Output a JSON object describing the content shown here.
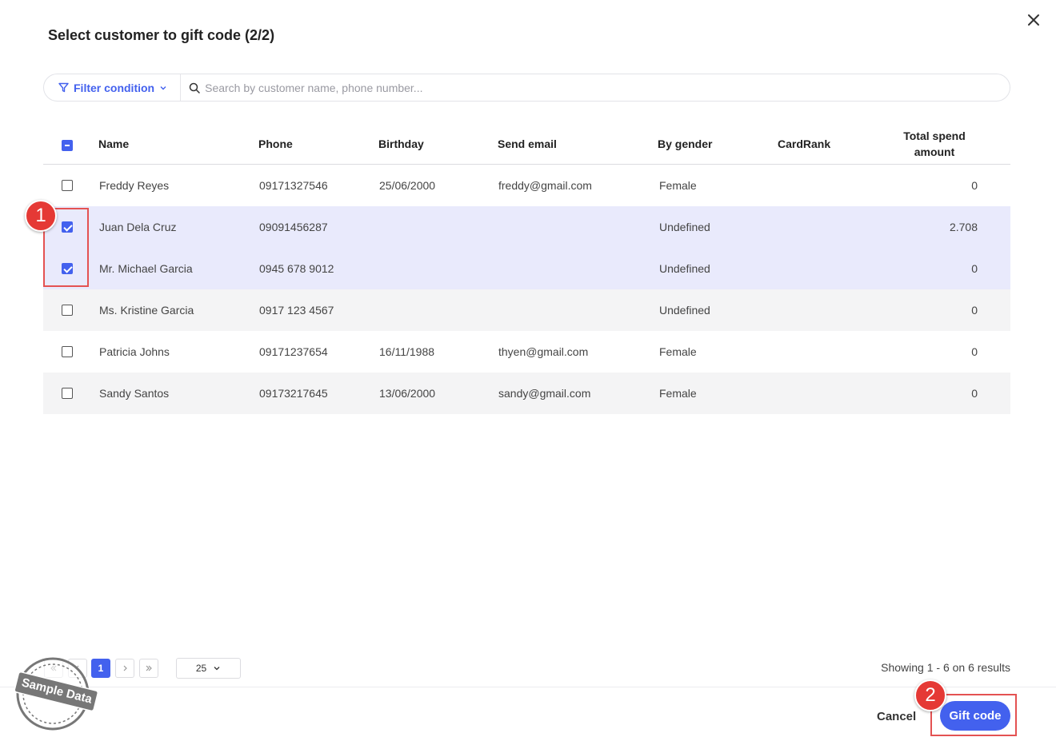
{
  "modal": {
    "title": "Select customer to gift code (2/2)"
  },
  "search": {
    "filter_label": "Filter condition",
    "placeholder": "Search by customer name, phone number..."
  },
  "table": {
    "columns": {
      "name": "Name",
      "phone": "Phone",
      "birthday": "Birthday",
      "email": "Send email",
      "gender": "By gender",
      "cardrank": "CardRank",
      "total_line1": "Total spend",
      "total_line2": "amount"
    },
    "rows": [
      {
        "name": "Freddy Reyes",
        "phone": "09171327546",
        "birthday": "25/06/2000",
        "email": "freddy@gmail.com",
        "gender": "Female",
        "cardrank": "",
        "total": "0",
        "checked": false
      },
      {
        "name": "Juan Dela Cruz",
        "phone": "09091456287",
        "birthday": "",
        "email": "",
        "gender": "Undefined",
        "cardrank": "",
        "total": "2.708",
        "checked": true
      },
      {
        "name": "Mr. Michael Garcia",
        "phone": "0945 678 9012",
        "birthday": "",
        "email": "",
        "gender": "Undefined",
        "cardrank": "",
        "total": "0",
        "checked": true
      },
      {
        "name": "Ms. Kristine Garcia",
        "phone": "0917 123 4567",
        "birthday": "",
        "email": "",
        "gender": "Undefined",
        "cardrank": "",
        "total": "0",
        "checked": false
      },
      {
        "name": "Patricia Johns",
        "phone": "09171237654",
        "birthday": "16/11/1988",
        "email": "thyen@gmail.com",
        "gender": "Female",
        "cardrank": "",
        "total": "0",
        "checked": false
      },
      {
        "name": "Sandy Santos",
        "phone": "09173217645",
        "birthday": "13/06/2000",
        "email": "sandy@gmail.com",
        "gender": "Female",
        "cardrank": "",
        "total": "0",
        "checked": false
      }
    ]
  },
  "pagination": {
    "current_page": "1",
    "page_size": "25",
    "showing": "Showing 1 - 6 on 6 results"
  },
  "footer": {
    "cancel_label": "Cancel",
    "gift_label": "Gift code"
  },
  "annotations": {
    "badge_1": "1",
    "badge_2": "2"
  },
  "watermark": {
    "text": "Sample Data"
  },
  "colors": {
    "accent": "#4361ee",
    "selected_row": "#e9eafc",
    "annotation_red": "#e53935"
  }
}
